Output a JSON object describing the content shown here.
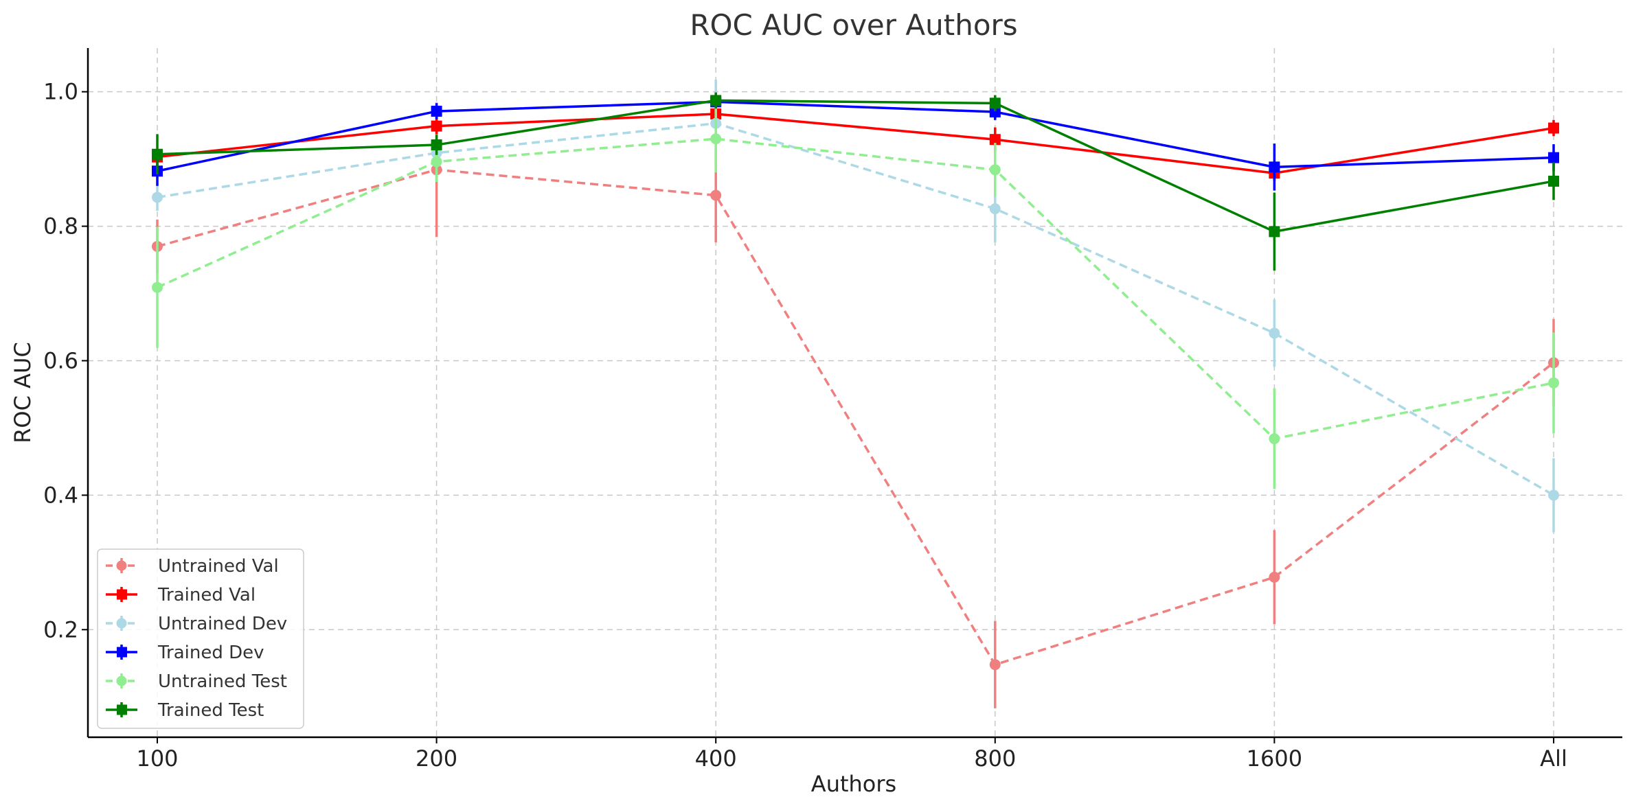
{
  "chart_data": {
    "type": "line",
    "title": "ROC AUC over Authors",
    "xlabel": "Authors",
    "ylabel": "ROC AUC",
    "categories": [
      "100",
      "200",
      "400",
      "800",
      "1600",
      "All"
    ],
    "ylim": [
      0.04,
      1.065
    ],
    "yticks": [
      0.2,
      0.4,
      0.6,
      0.8,
      1.0
    ],
    "ytick_labels": [
      "0.2",
      "0.4",
      "0.6",
      "0.8",
      "1.0"
    ],
    "grid": true,
    "legend_position": "lower-left",
    "series": [
      {
        "name": "Untrained Val",
        "color": "#F08080",
        "dashed": true,
        "marker": "circle",
        "values": [
          0.77,
          0.884,
          0.846,
          0.148,
          0.278,
          0.597
        ],
        "errors": [
          0.04,
          0.1,
          0.07,
          0.065,
          0.07,
          0.065
        ]
      },
      {
        "name": "Trained Val",
        "color": "#FF0000",
        "dashed": false,
        "marker": "square",
        "values": [
          0.903,
          0.949,
          0.967,
          0.929,
          0.879,
          0.946
        ],
        "errors": [
          0.012,
          0.012,
          0.012,
          0.018,
          0.012,
          0.012
        ]
      },
      {
        "name": "Untrained Dev",
        "color": "#ADD8E6",
        "dashed": true,
        "marker": "circle",
        "values": [
          0.843,
          0.909,
          0.953,
          0.826,
          0.641,
          0.4
        ],
        "errors": [
          0.02,
          0.02,
          0.065,
          0.05,
          0.05,
          0.055
        ]
      },
      {
        "name": "Trained Dev",
        "color": "#0000FF",
        "dashed": false,
        "marker": "square",
        "values": [
          0.882,
          0.971,
          0.985,
          0.97,
          0.888,
          0.902
        ],
        "errors": [
          0.022,
          0.012,
          0.012,
          0.012,
          0.035,
          0.02
        ]
      },
      {
        "name": "Untrained Test",
        "color": "#90EE90",
        "dashed": true,
        "marker": "circle",
        "values": [
          0.709,
          0.896,
          0.93,
          0.884,
          0.484,
          0.567
        ],
        "errors": [
          0.09,
          0.03,
          0.05,
          0.04,
          0.075,
          0.075
        ]
      },
      {
        "name": "Trained Test",
        "color": "#008000",
        "dashed": false,
        "marker": "square",
        "values": [
          0.907,
          0.921,
          0.987,
          0.983,
          0.792,
          0.867
        ],
        "errors": [
          0.03,
          0.015,
          0.012,
          0.012,
          0.058,
          0.028
        ]
      }
    ]
  }
}
